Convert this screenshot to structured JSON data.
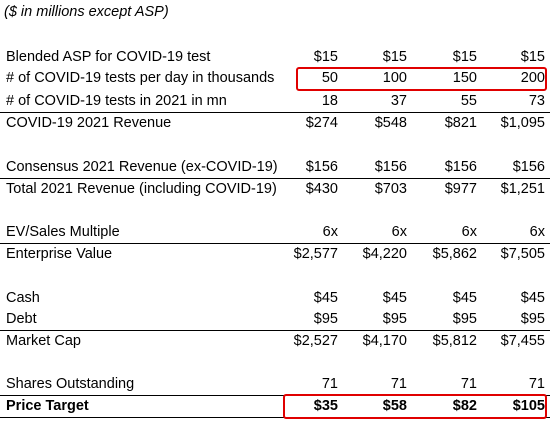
{
  "header_note": "($ in millions except ASP)",
  "rows": [
    {
      "label": "Blended ASP for COVID-19 test",
      "values": [
        "$15",
        "$15",
        "$15",
        "$15"
      ]
    },
    {
      "label": "# of COVID-19 tests per day in thousands",
      "values": [
        "50",
        "100",
        "150",
        "200"
      ]
    },
    {
      "label": "# of COVID-19 tests in 2021 in mn",
      "values": [
        "18",
        "37",
        "55",
        "73"
      ]
    },
    {
      "label": "COVID-19 2021 Revenue",
      "values": [
        "$274",
        "$548",
        "$821",
        "$1,095"
      ]
    },
    {
      "label": "Consensus 2021 Revenue (ex-COVID-19)",
      "values": [
        "$156",
        "$156",
        "$156",
        "$156"
      ]
    },
    {
      "label": "Total 2021 Revenue (including COVID-19)",
      "values": [
        "$430",
        "$703",
        "$977",
        "$1,251"
      ]
    },
    {
      "label": "EV/Sales Multiple",
      "values": [
        "6x",
        "6x",
        "6x",
        "6x"
      ]
    },
    {
      "label": "Enterprise Value",
      "values": [
        "$2,577",
        "$4,220",
        "$5,862",
        "$7,505"
      ]
    },
    {
      "label": "Cash",
      "values": [
        "$45",
        "$45",
        "$45",
        "$45"
      ]
    },
    {
      "label": "Debt",
      "values": [
        "$95",
        "$95",
        "$95",
        "$95"
      ]
    },
    {
      "label": "Market Cap",
      "values": [
        "$2,527",
        "$4,170",
        "$5,812",
        "$7,455"
      ]
    },
    {
      "label": "Shares Outstanding",
      "values": [
        "71",
        "71",
        "71",
        "71"
      ]
    },
    {
      "label": "Price Target",
      "values": [
        "$35",
        "$58",
        "$82",
        "$105"
      ]
    }
  ],
  "colors": {
    "highlight_box": "#e00000",
    "text": "#000000",
    "background": "#ffffff"
  }
}
